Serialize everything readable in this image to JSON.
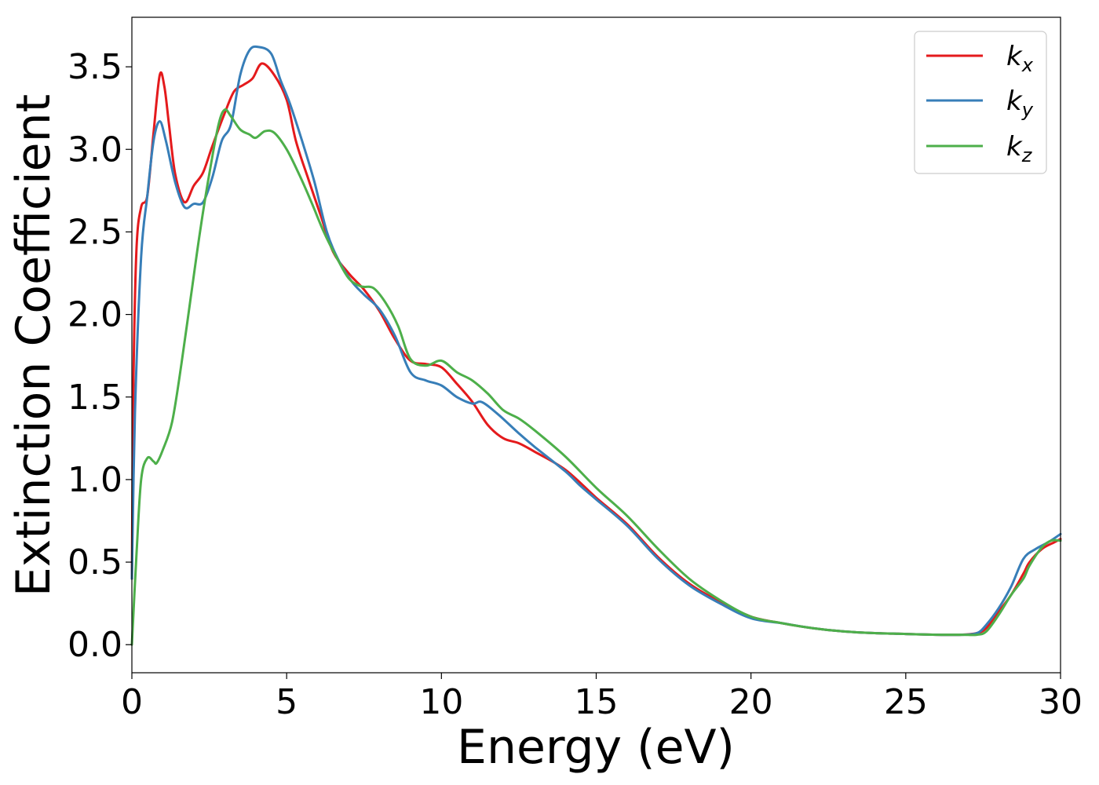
{
  "chart_data": {
    "type": "line",
    "title": "",
    "xlabel": "Energy (eV)",
    "ylabel": "Extinction Coefficient",
    "xlim": [
      0,
      30
    ],
    "ylim": [
      -0.17,
      3.8
    ],
    "xticks": [
      0,
      5,
      10,
      15,
      20,
      25,
      30
    ],
    "xtick_labels": [
      "0",
      "5",
      "10",
      "15",
      "20",
      "25",
      "30"
    ],
    "yticks": [
      0.0,
      0.5,
      1.0,
      1.5,
      2.0,
      2.5,
      3.0,
      3.5
    ],
    "ytick_labels": [
      "0.0",
      "0.5",
      "1.0",
      "1.5",
      "2.0",
      "2.5",
      "3.0",
      "3.5"
    ],
    "grid": false,
    "legend_position": "top-right",
    "series": [
      {
        "name": "k_x",
        "label_base": "k",
        "label_sub": "x",
        "color": "#e41a1c",
        "points": [
          [
            0,
            0.4
          ],
          [
            0.05,
            1.6
          ],
          [
            0.15,
            2.4
          ],
          [
            0.3,
            2.65
          ],
          [
            0.5,
            2.72
          ],
          [
            0.7,
            3.1
          ],
          [
            0.9,
            3.45
          ],
          [
            1.05,
            3.38
          ],
          [
            1.2,
            3.15
          ],
          [
            1.4,
            2.85
          ],
          [
            1.7,
            2.68
          ],
          [
            2.0,
            2.78
          ],
          [
            2.3,
            2.86
          ],
          [
            2.6,
            3.02
          ],
          [
            3.0,
            3.22
          ],
          [
            3.3,
            3.35
          ],
          [
            3.6,
            3.39
          ],
          [
            3.9,
            3.43
          ],
          [
            4.2,
            3.52
          ],
          [
            4.6,
            3.45
          ],
          [
            5.0,
            3.3
          ],
          [
            5.3,
            3.05
          ],
          [
            5.7,
            2.82
          ],
          [
            6.1,
            2.6
          ],
          [
            6.5,
            2.38
          ],
          [
            7.0,
            2.25
          ],
          [
            7.5,
            2.15
          ],
          [
            8.0,
            2.02
          ],
          [
            8.5,
            1.85
          ],
          [
            9.0,
            1.72
          ],
          [
            9.5,
            1.7
          ],
          [
            10.0,
            1.68
          ],
          [
            10.5,
            1.58
          ],
          [
            11.0,
            1.47
          ],
          [
            11.5,
            1.33
          ],
          [
            12.0,
            1.25
          ],
          [
            12.5,
            1.22
          ],
          [
            13.0,
            1.17
          ],
          [
            14.0,
            1.06
          ],
          [
            15.0,
            0.89
          ],
          [
            16.0,
            0.73
          ],
          [
            17.0,
            0.53
          ],
          [
            18.0,
            0.37
          ],
          [
            19.0,
            0.26
          ],
          [
            20.0,
            0.17
          ],
          [
            21.0,
            0.13
          ],
          [
            22.0,
            0.1
          ],
          [
            23.0,
            0.08
          ],
          [
            24.0,
            0.07
          ],
          [
            25.0,
            0.065
          ],
          [
            26.0,
            0.06
          ],
          [
            26.8,
            0.06
          ],
          [
            27.3,
            0.07
          ],
          [
            27.6,
            0.1
          ],
          [
            28.0,
            0.2
          ],
          [
            28.4,
            0.3
          ],
          [
            28.8,
            0.43
          ],
          [
            29.0,
            0.5
          ],
          [
            29.4,
            0.58
          ],
          [
            29.8,
            0.62
          ],
          [
            30.0,
            0.64
          ]
        ]
      },
      {
        "name": "k_y",
        "label_base": "k",
        "label_sub": "y",
        "color": "#377eb8",
        "points": [
          [
            0,
            0.4
          ],
          [
            0.1,
            1.4
          ],
          [
            0.3,
            2.35
          ],
          [
            0.5,
            2.72
          ],
          [
            0.7,
            3.05
          ],
          [
            0.9,
            3.17
          ],
          [
            1.1,
            3.05
          ],
          [
            1.4,
            2.8
          ],
          [
            1.7,
            2.65
          ],
          [
            2.0,
            2.67
          ],
          [
            2.3,
            2.68
          ],
          [
            2.6,
            2.83
          ],
          [
            2.9,
            3.05
          ],
          [
            3.2,
            3.15
          ],
          [
            3.5,
            3.45
          ],
          [
            3.8,
            3.6
          ],
          [
            4.1,
            3.62
          ],
          [
            4.5,
            3.58
          ],
          [
            4.8,
            3.42
          ],
          [
            5.1,
            3.28
          ],
          [
            5.5,
            3.05
          ],
          [
            5.9,
            2.8
          ],
          [
            6.3,
            2.5
          ],
          [
            6.7,
            2.32
          ],
          [
            7.1,
            2.2
          ],
          [
            7.5,
            2.12
          ],
          [
            8.0,
            2.03
          ],
          [
            8.5,
            1.87
          ],
          [
            9.0,
            1.65
          ],
          [
            9.5,
            1.6
          ],
          [
            10.0,
            1.57
          ],
          [
            10.5,
            1.5
          ],
          [
            11.0,
            1.46
          ],
          [
            11.3,
            1.47
          ],
          [
            11.8,
            1.4
          ],
          [
            12.5,
            1.28
          ],
          [
            13.0,
            1.2
          ],
          [
            14.0,
            1.05
          ],
          [
            14.5,
            0.96
          ],
          [
            15.0,
            0.88
          ],
          [
            16.0,
            0.72
          ],
          [
            17.0,
            0.52
          ],
          [
            18.0,
            0.36
          ],
          [
            19.0,
            0.25
          ],
          [
            20.0,
            0.16
          ],
          [
            21.0,
            0.13
          ],
          [
            22.0,
            0.1
          ],
          [
            23.0,
            0.08
          ],
          [
            24.0,
            0.07
          ],
          [
            25.0,
            0.065
          ],
          [
            26.0,
            0.06
          ],
          [
            26.8,
            0.06
          ],
          [
            27.3,
            0.07
          ],
          [
            27.6,
            0.12
          ],
          [
            28.0,
            0.22
          ],
          [
            28.4,
            0.35
          ],
          [
            28.8,
            0.52
          ],
          [
            29.2,
            0.58
          ],
          [
            29.6,
            0.62
          ],
          [
            30.0,
            0.67
          ]
        ]
      },
      {
        "name": "k_z",
        "label_base": "k",
        "label_sub": "z",
        "color": "#4daf4a",
        "points": [
          [
            0,
            0.0
          ],
          [
            0.15,
            0.55
          ],
          [
            0.3,
            1.0
          ],
          [
            0.5,
            1.13
          ],
          [
            0.7,
            1.11
          ],
          [
            0.8,
            1.1
          ],
          [
            1.0,
            1.18
          ],
          [
            1.3,
            1.35
          ],
          [
            1.6,
            1.7
          ],
          [
            1.9,
            2.1
          ],
          [
            2.2,
            2.5
          ],
          [
            2.5,
            2.85
          ],
          [
            2.8,
            3.15
          ],
          [
            3.0,
            3.24
          ],
          [
            3.2,
            3.2
          ],
          [
            3.5,
            3.12
          ],
          [
            3.8,
            3.09
          ],
          [
            4.0,
            3.07
          ],
          [
            4.3,
            3.11
          ],
          [
            4.6,
            3.1
          ],
          [
            5.0,
            3.0
          ],
          [
            5.4,
            2.85
          ],
          [
            5.8,
            2.68
          ],
          [
            6.2,
            2.5
          ],
          [
            6.6,
            2.35
          ],
          [
            7.0,
            2.22
          ],
          [
            7.4,
            2.17
          ],
          [
            7.8,
            2.16
          ],
          [
            8.2,
            2.07
          ],
          [
            8.6,
            1.93
          ],
          [
            9.0,
            1.73
          ],
          [
            9.5,
            1.69
          ],
          [
            10.0,
            1.72
          ],
          [
            10.5,
            1.65
          ],
          [
            11.0,
            1.6
          ],
          [
            11.5,
            1.52
          ],
          [
            12.0,
            1.42
          ],
          [
            12.5,
            1.37
          ],
          [
            13.0,
            1.3
          ],
          [
            14.0,
            1.14
          ],
          [
            15.0,
            0.95
          ],
          [
            16.0,
            0.78
          ],
          [
            17.0,
            0.58
          ],
          [
            18.0,
            0.4
          ],
          [
            19.0,
            0.27
          ],
          [
            20.0,
            0.17
          ],
          [
            21.0,
            0.13
          ],
          [
            22.0,
            0.1
          ],
          [
            23.0,
            0.08
          ],
          [
            24.0,
            0.07
          ],
          [
            25.0,
            0.065
          ],
          [
            26.0,
            0.06
          ],
          [
            26.8,
            0.06
          ],
          [
            27.3,
            0.06
          ],
          [
            27.6,
            0.08
          ],
          [
            28.0,
            0.18
          ],
          [
            28.4,
            0.3
          ],
          [
            28.8,
            0.4
          ],
          [
            29.0,
            0.48
          ],
          [
            29.4,
            0.59
          ],
          [
            29.7,
            0.63
          ],
          [
            30.0,
            0.63
          ]
        ]
      }
    ]
  }
}
